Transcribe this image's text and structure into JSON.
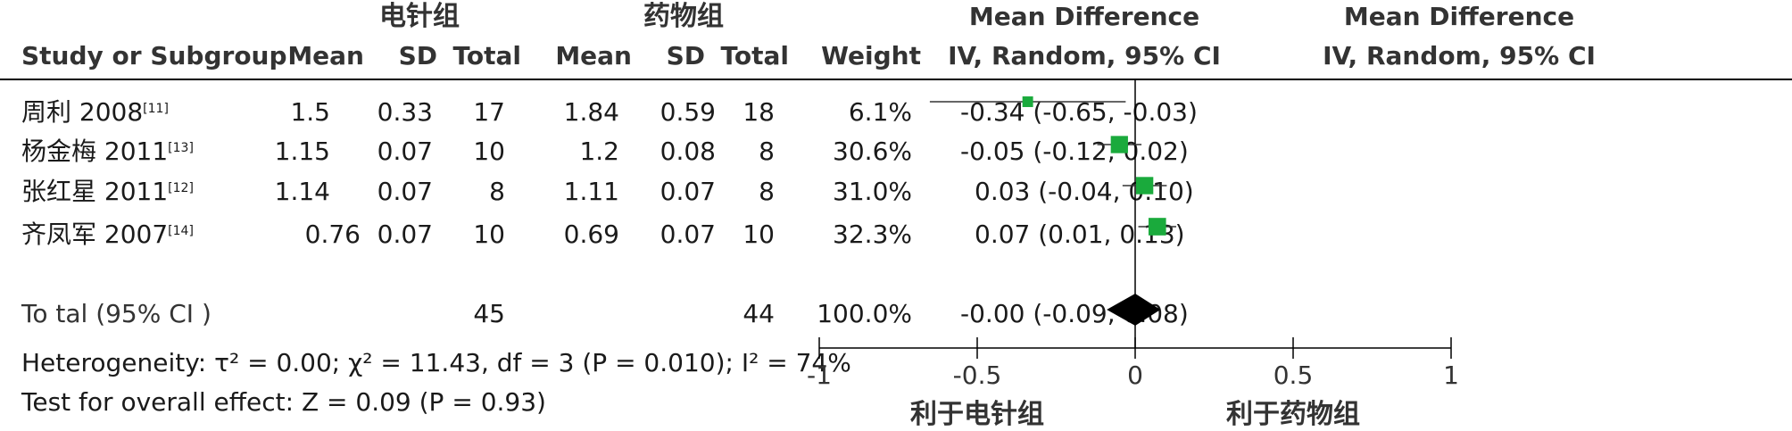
{
  "header": {
    "group_a": "电针组",
    "group_b": "药物组",
    "md_title_left": "Mean Difference",
    "md_sub_left": "IV, Random, 95% CI",
    "md_title_right": "Mean Difference",
    "md_sub_right": "IV, Random, 95% CI",
    "col_study": "Study or Subgroup",
    "col_mean": "Mean",
    "col_sd": "SD",
    "col_total": "Total",
    "col_weight": "Weight"
  },
  "studies": [
    {
      "name": "周利 2008",
      "ref": "[11]",
      "mean_a": "1.5",
      "sd_a": "0.33",
      "total_a": "17",
      "mean_b": "1.84",
      "sd_b": "0.59",
      "total_b": "18",
      "weight": "6.1%",
      "ci_text": "-0.34 (-0.65, -0.03)"
    },
    {
      "name": "杨金梅 2011",
      "ref": "[13]",
      "mean_a": "1.15",
      "sd_a": "0.07",
      "total_a": "10",
      "mean_b": "1.2",
      "sd_b": "0.08",
      "total_b": "8",
      "weight": "30.6%",
      "ci_text": "-0.05 (-0.12, 0.02)"
    },
    {
      "name": "张红星 2011",
      "ref": "[12]",
      "mean_a": "1.14",
      "sd_a": "0.07",
      "total_a": "8",
      "mean_b": "1.11",
      "sd_b": "0.07",
      "total_b": "8",
      "weight": "31.0%",
      "ci_text": "0.03 (-0.04, 0.10)"
    },
    {
      "name": "齐凤军 2007",
      "ref": "[14]",
      "mean_a": "0.76",
      "sd_a": "0.07",
      "total_a": "10",
      "mean_b": "0.69",
      "sd_b": "0.07",
      "total_b": "10",
      "weight": "32.3%",
      "ci_text": "0.07 (0.01, 0.13)"
    }
  ],
  "total": {
    "label": "To tal (95% CI )",
    "total_a": "45",
    "total_b": "44",
    "weight": "100.0%",
    "ci_text": "-0.00 (-0.09, 0.08)"
  },
  "heterogeneity": "Heterogeneity: τ² = 0.00; χ² = 11.43, df = 3 (P = 0.010); I² = 74%",
  "overall_effect": "Test for overall effect: Z = 0.09 (P = 0.93)",
  "colors": {
    "marker": "#1aaa3c",
    "diamond": "#000000",
    "axis": "#000000"
  },
  "chart_data": {
    "type": "forest",
    "xlim": [
      -1,
      1
    ],
    "ticks": [
      -1,
      -0.5,
      0,
      0.5,
      1
    ],
    "tick_labels": [
      "-1",
      "-0.5",
      "0",
      "0.5",
      "1"
    ],
    "favours_left": "利于电针组",
    "favours_right": "利于药物组",
    "points": [
      {
        "study": "周利 2008",
        "md": -0.34,
        "lo": -0.65,
        "hi": -0.03,
        "weight": 6.1
      },
      {
        "study": "杨金梅 2011",
        "md": -0.05,
        "lo": -0.12,
        "hi": 0.02,
        "weight": 30.6
      },
      {
        "study": "张红星 2011",
        "md": 0.03,
        "lo": -0.04,
        "hi": 0.1,
        "weight": 31.0
      },
      {
        "study": "齐凤军 2007",
        "md": 0.07,
        "lo": 0.01,
        "hi": 0.13,
        "weight": 32.3
      }
    ],
    "pooled": {
      "md": -0.0,
      "lo": -0.09,
      "hi": 0.08
    }
  }
}
